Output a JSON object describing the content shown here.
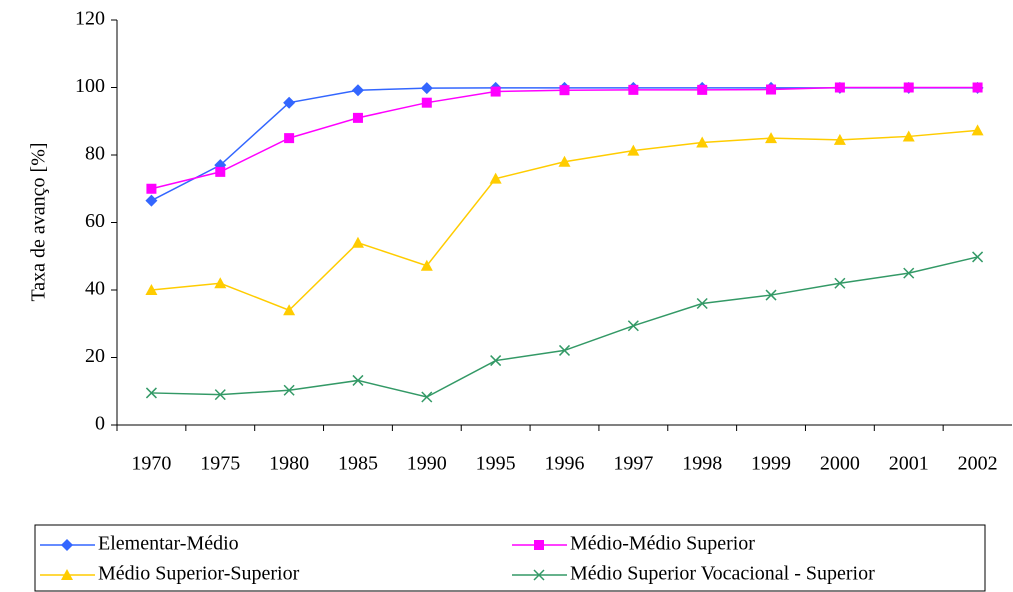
{
  "chart_data": {
    "type": "line",
    "y_label": "Taxa de avanço [%]",
    "categories": [
      "1970",
      "1975",
      "1980",
      "1985",
      "1990",
      "1995",
      "1996",
      "1997",
      "1998",
      "1999",
      "2000",
      "2001",
      "2002"
    ],
    "series": [
      {
        "name": "Elementar-Médio",
        "color": "#3366ff",
        "marker": "diamond",
        "values": [
          66.5,
          77,
          95.5,
          99.2,
          99.8,
          99.9,
          99.9,
          99.9,
          99.9,
          99.9,
          99.9,
          99.9,
          99.9
        ]
      },
      {
        "name": "Médio-Médio Superior",
        "color": "#ff00ff",
        "marker": "square",
        "values": [
          70,
          75,
          85,
          91,
          95.5,
          98.8,
          99.2,
          99.3,
          99.3,
          99.4,
          100,
          100,
          100
        ]
      },
      {
        "name": "Médio Superior-Superior",
        "color": "#ffcc00",
        "marker": "triangle",
        "values": [
          40,
          42,
          34,
          54,
          47.2,
          73,
          78,
          81.3,
          83.7,
          85,
          84.5,
          85.5,
          87.3
        ]
      },
      {
        "name": "Médio Superior Vocacional - Superior",
        "color": "#339966",
        "marker": "x",
        "values": [
          9.5,
          9,
          10.3,
          13.2,
          8.3,
          19.1,
          22.1,
          29.4,
          36,
          38.5,
          42,
          45,
          49.8
        ]
      }
    ],
    "ylim": [
      0,
      120
    ],
    "yticks": [
      0,
      20,
      40,
      60,
      80,
      100,
      120
    ],
    "grid": false,
    "legend": "bottom"
  }
}
